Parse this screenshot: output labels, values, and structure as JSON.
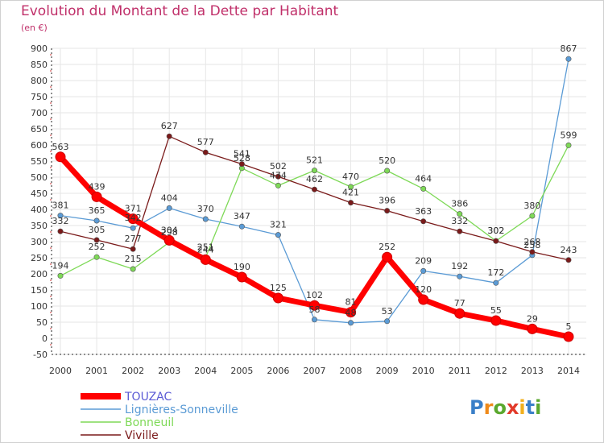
{
  "title": "Evolution du Montant de la Dette par Habitant",
  "subtitle": "(en €)",
  "logo_text": "Proxiti",
  "chart_data": {
    "type": "line",
    "title": "Evolution du Montant de la Dette par Habitant",
    "ylabel": "(en €)",
    "xlabel": "",
    "x": [
      "2000",
      "2001",
      "2002",
      "2003",
      "2004",
      "2005",
      "2006",
      "2007",
      "2008",
      "2009",
      "2010",
      "2011",
      "2012",
      "2013",
      "2014"
    ],
    "ylim": [
      -50,
      900
    ],
    "yticks": [
      -50,
      0,
      50,
      100,
      150,
      200,
      250,
      300,
      350,
      400,
      450,
      500,
      550,
      600,
      650,
      700,
      750,
      800,
      850,
      900
    ],
    "grid": true,
    "legend_position": "bottom-left",
    "series": [
      {
        "name": "TOUZAC",
        "color": "#ff0000",
        "values": [
          563,
          439,
          371,
          304,
          244,
          190,
          125,
          102,
          81,
          252,
          120,
          77,
          55,
          29,
          5
        ],
        "labels": [
          "563",
          "439",
          "371",
          "304",
          "244",
          "190",
          "125",
          "102",
          "81",
          "252",
          "120",
          "77",
          "55",
          "29",
          "5"
        ]
      },
      {
        "name": "Lignières-Sonneville",
        "color": "#5b9bd5",
        "values": [
          381,
          365,
          342,
          404,
          370,
          347,
          321,
          58,
          48,
          53,
          209,
          192,
          172,
          258,
          867
        ],
        "labels": [
          "381",
          "365",
          "342",
          "404",
          "370",
          "347",
          "321",
          "58",
          "48",
          "53",
          "209",
          "192",
          "172",
          "258",
          "867"
        ]
      },
      {
        "name": "Bonneuil",
        "color": "#7ed957",
        "values": [
          194,
          252,
          215,
          298,
          251,
          528,
          474,
          521,
          470,
          520,
          464,
          386,
          302,
          380,
          599
        ],
        "labels": [
          "194",
          "252",
          "215",
          "298",
          "251",
          "528",
          "474",
          "521",
          "470",
          "520",
          "464",
          "386",
          "302",
          "380",
          "599"
        ]
      },
      {
        "name": "Viville",
        "color": "#7a1a1a",
        "values": [
          332,
          305,
          277,
          627,
          577,
          541,
          502,
          462,
          421,
          396,
          363,
          332,
          302,
          268,
          243
        ],
        "labels": [
          "332",
          "305",
          "277",
          "627",
          "577",
          "541",
          "502",
          "462",
          "421",
          "396",
          "363",
          "332",
          "302",
          "268",
          "243"
        ]
      }
    ]
  }
}
